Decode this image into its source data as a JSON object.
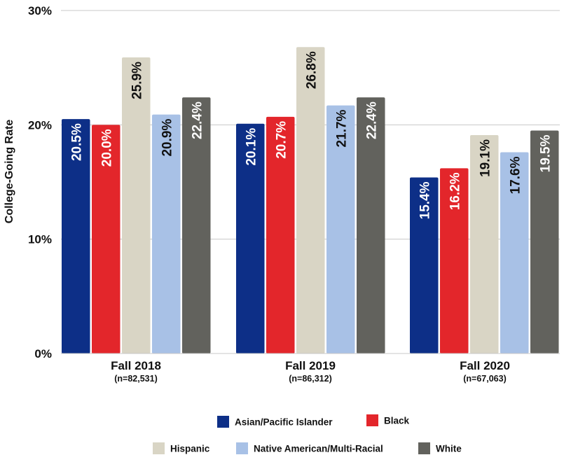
{
  "chart_data": {
    "type": "bar",
    "title": "",
    "xlabel": "",
    "ylabel": "College-Going Rate",
    "ylim": [
      0,
      30
    ],
    "yticks": [
      0,
      10,
      20,
      30
    ],
    "ytick_labels": [
      "0%",
      "10%",
      "20%",
      "30%"
    ],
    "grid": true,
    "categories": [
      "Fall 2018",
      "Fall 2019",
      "Fall 2020"
    ],
    "category_sublabels": [
      "(n=82,531)",
      "(n=86,312)",
      "(n=67,063)"
    ],
    "series": [
      {
        "name": "Asian/Pacific Islander",
        "color": "#0d2f87",
        "label_color": "#ffffff",
        "values": [
          20.5,
          20.1,
          15.4
        ],
        "labels": [
          "20.5%",
          "20.1%",
          "15.4%"
        ]
      },
      {
        "name": "Black",
        "color": "#e3262b",
        "label_color": "#ffffff",
        "values": [
          20.0,
          20.7,
          16.2
        ],
        "labels": [
          "20.0%",
          "20.7%",
          "16.2%"
        ]
      },
      {
        "name": "Hispanic",
        "color": "#d9d5c5",
        "label_color": "#111111",
        "values": [
          25.9,
          26.8,
          19.1
        ],
        "labels": [
          "25.9%",
          "26.8%",
          "19.1%"
        ]
      },
      {
        "name": "Native American/Multi-Racial",
        "color": "#a8c1e6",
        "label_color": "#111111",
        "values": [
          20.9,
          21.7,
          17.6
        ],
        "labels": [
          "20.9%",
          "21.7%",
          "17.6%"
        ]
      },
      {
        "name": "White",
        "color": "#62625d",
        "label_color": "#ffffff",
        "values": [
          22.4,
          22.4,
          19.5
        ],
        "labels": [
          "22.4%",
          "22.4%",
          "19.5%"
        ]
      }
    ],
    "legend_position": "bottom",
    "grid_color": "#c8c8c8"
  }
}
